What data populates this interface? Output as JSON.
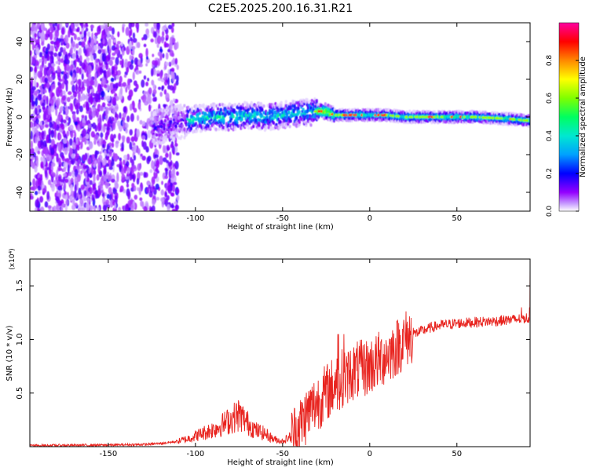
{
  "title": "C2E5.2025.200.16.31.R21",
  "chart_data": [
    {
      "type": "heatmap",
      "title": "C2E5.2025.200.16.31.R21",
      "xlabel": "Height of straight line (km)",
      "ylabel": "Frequency (Hz)",
      "xlim": [
        -195,
        92
      ],
      "ylim": [
        -50,
        50
      ],
      "x_ticks": [
        -150,
        -100,
        -50,
        0,
        50
      ],
      "y_ticks": [
        -40,
        -20,
        0,
        20,
        40
      ],
      "description_of_signal": {
        "peak_frequency_curve": [
          [
            -115,
            -4
          ],
          [
            -105,
            -2
          ],
          [
            -100,
            -1
          ],
          [
            -90,
            0
          ],
          [
            -80,
            0
          ],
          [
            -70,
            1
          ],
          [
            -60,
            0
          ],
          [
            -50,
            1
          ],
          [
            -40,
            2
          ],
          [
            -30,
            3
          ],
          [
            -25,
            3
          ],
          [
            -20,
            1
          ],
          [
            -10,
            1
          ],
          [
            0,
            1
          ],
          [
            10,
            1
          ],
          [
            20,
            0
          ],
          [
            40,
            0
          ],
          [
            60,
            0
          ],
          [
            80,
            -1
          ],
          [
            92,
            -2
          ]
        ]
      },
      "colorbar": {
        "label": "Normalized spectral amplitude",
        "range": [
          0.0,
          1.0
        ],
        "ticks": [
          "0.0",
          "0.2",
          "0.4",
          "0.6",
          "0.8"
        ],
        "colormap": [
          "#ffffff",
          "#9400ff",
          "#0000ff",
          "#00c8ff",
          "#00ff88",
          "#7fff00",
          "#ffff00",
          "#ff8800",
          "#ff0000",
          "#ff0066",
          "#ff00aa"
        ]
      }
    },
    {
      "type": "line",
      "xlabel": "Height of straight line (km)",
      "ylabel": "SNR (10 * v/v)",
      "y_multiplier": "(x10⁴)",
      "xlim": [
        -195,
        92
      ],
      "ylim": [
        0,
        1.75
      ],
      "x_ticks": [
        -150,
        -100,
        -50,
        0,
        50
      ],
      "y_ticks": [
        "0.5",
        "1.0",
        "1.5"
      ],
      "color": "#e8231e",
      "series": [
        {
          "x": [
            -195,
            -150,
            -130,
            -120,
            -110,
            -105,
            -100,
            -95,
            -90,
            -85,
            -80,
            -75,
            -70,
            -65,
            -60,
            -55,
            -50,
            -45,
            -40,
            -35,
            -30,
            -25,
            -20,
            -15,
            -10,
            -5,
            0,
            5,
            10,
            15,
            20,
            25,
            30,
            35,
            40,
            50,
            60,
            70,
            80,
            85,
            90,
            92
          ],
          "y": [
            0.01,
            0.015,
            0.02,
            0.03,
            0.05,
            0.07,
            0.1,
            0.13,
            0.16,
            0.2,
            0.25,
            0.3,
            0.22,
            0.15,
            0.12,
            0.07,
            0.05,
            0.1,
            0.2,
            0.33,
            0.42,
            0.5,
            0.58,
            0.65,
            0.7,
            0.72,
            0.75,
            0.8,
            0.86,
            0.92,
            1.0,
            1.05,
            1.08,
            1.11,
            1.13,
            1.15,
            1.16,
            1.17,
            1.18,
            1.19,
            1.2,
            1.2
          ]
        }
      ]
    }
  ]
}
